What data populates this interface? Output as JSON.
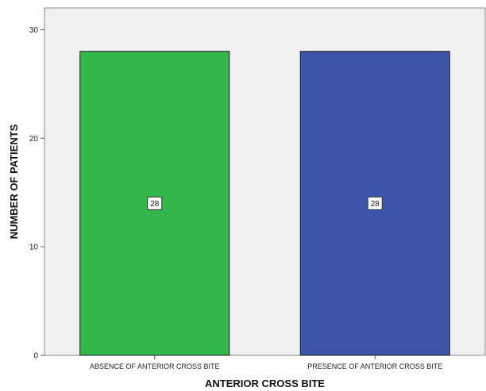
{
  "chart_data": {
    "type": "bar",
    "categories": [
      "ABSENCE OF ANTERIOR CROSS BITE",
      "PRESENCE OF ANTERIOR CROSS BITE"
    ],
    "values": [
      28,
      28
    ],
    "data_labels": [
      "28",
      "28"
    ],
    "colors": [
      "#33b64a",
      "#3d55a8"
    ],
    "xlabel": "ANTERIOR CROSS BITE",
    "ylabel": "NUMBER OF PATIENTS",
    "ylim": [
      0,
      32
    ],
    "yticks": [
      0,
      10,
      20,
      30
    ],
    "ytick_labels": [
      "0",
      "10",
      "20",
      "30"
    ],
    "grid": false,
    "plot_background": "#f0f0f0"
  }
}
